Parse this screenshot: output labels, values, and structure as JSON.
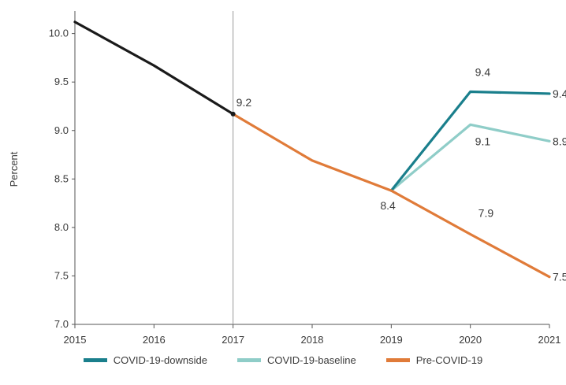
{
  "chart_data": {
    "type": "line",
    "ylabel": "Percent",
    "xlabel": "",
    "ylim": [
      7.0,
      10.2
    ],
    "yticks": [
      "7.0",
      "7.5",
      "8.0",
      "8.5",
      "9.0",
      "9.5",
      "10.0"
    ],
    "x": [
      "2015",
      "2016",
      "2017",
      "2018",
      "2019",
      "2020",
      "2021"
    ],
    "reference_line_x": "2017",
    "series": [
      {
        "key": "historical",
        "color": "#1a1a1a",
        "points": [
          [
            "2015",
            10.12
          ],
          [
            "2016",
            9.67
          ],
          [
            "2017",
            9.17
          ]
        ]
      },
      {
        "key": "downside",
        "name": "COVID-19-downside",
        "color": "#1a7f8c",
        "points": [
          [
            "2019",
            8.38
          ],
          [
            "2020",
            9.4
          ],
          [
            "2021",
            9.38
          ]
        ]
      },
      {
        "key": "baseline",
        "name": "COVID-19-baseline",
        "color": "#8fcdc8",
        "points": [
          [
            "2019",
            8.38
          ],
          [
            "2020",
            9.06
          ],
          [
            "2021",
            8.89
          ]
        ]
      },
      {
        "key": "precovid",
        "name": "Pre-COVID-19",
        "color": "#e07b39",
        "points": [
          [
            "2017",
            9.17
          ],
          [
            "2018",
            8.69
          ],
          [
            "2019",
            8.38
          ],
          [
            "2020",
            7.93
          ],
          [
            "2021",
            7.49
          ]
        ]
      }
    ],
    "data_labels": [
      {
        "text": "9.2",
        "x": "2017",
        "y": 9.17
      },
      {
        "text": "8.4",
        "x": "2019",
        "y": 8.38
      },
      {
        "text": "9.4",
        "x": "2020",
        "y": 9.4
      },
      {
        "text": "9.1",
        "x": "2020",
        "y": 9.06
      },
      {
        "text": "7.9",
        "x": "2020",
        "y": 7.93
      },
      {
        "text": "9.4",
        "x": "2021",
        "y": 9.38
      },
      {
        "text": "8.9",
        "x": "2021",
        "y": 8.89
      },
      {
        "text": "7.5",
        "x": "2021",
        "y": 7.49
      }
    ],
    "legend": {
      "placement": "bottom",
      "items": [
        {
          "label": "COVID-19-downside",
          "color": "#1a7f8c"
        },
        {
          "label": "COVID-19-baseline",
          "color": "#8fcdc8"
        },
        {
          "label": "Pre-COVID-19",
          "color": "#e07b39"
        }
      ]
    }
  }
}
